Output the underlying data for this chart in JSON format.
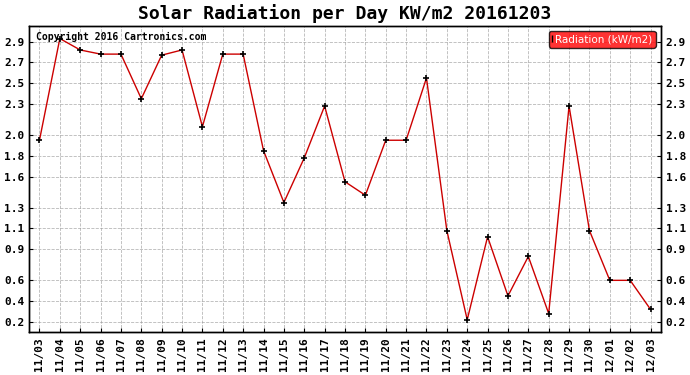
{
  "title": "Solar Radiation per Day KW/m2 20161203",
  "labels": [
    "11/03",
    "11/04",
    "11/05",
    "11/06",
    "11/07",
    "11/08",
    "11/09",
    "11/10",
    "11/11",
    "11/12",
    "11/13",
    "11/14",
    "11/15",
    "11/16",
    "11/17",
    "11/18",
    "11/19",
    "11/20",
    "11/21",
    "11/22",
    "11/23",
    "11/24",
    "11/25",
    "11/26",
    "11/27",
    "11/28",
    "11/29",
    "11/30",
    "12/01",
    "12/02",
    "12/03"
  ],
  "values": [
    1.95,
    2.93,
    2.82,
    2.78,
    2.78,
    2.35,
    2.77,
    2.82,
    2.08,
    2.78,
    2.78,
    1.85,
    1.35,
    1.78,
    2.28,
    1.55,
    1.42,
    1.95,
    1.95,
    2.55,
    1.08,
    0.22,
    1.02,
    0.45,
    0.83,
    0.28,
    2.28,
    1.08,
    0.6,
    0.6,
    0.32
  ],
  "line_color": "#cc0000",
  "marker": "+",
  "marker_color": "#000000",
  "ylim_min": 0.1,
  "ylim_max": 3.05,
  "ytick_positions": [
    0.2,
    0.4,
    0.6,
    0.9,
    1.1,
    1.3,
    1.6,
    1.8,
    2.0,
    2.3,
    2.5,
    2.7,
    2.9
  ],
  "ytick_labels": [
    "0.2",
    "0.4",
    "0.6",
    "0.9",
    "1.1",
    "1.3",
    "1.6",
    "1.8",
    "2.0",
    "2.3",
    "2.5",
    "2.7",
    "2.9"
  ],
  "background_color": "#ffffff",
  "plot_bg_color": "#ffffff",
  "grid_color": "#999999",
  "legend_label": "Radiation (kW/m2)",
  "legend_bg": "#ff0000",
  "legend_text_color": "#ffffff",
  "copyright_text": "Copyright 2016 Cartronics.com",
  "title_fontsize": 13,
  "tick_fontsize": 8,
  "copyright_fontsize": 7
}
